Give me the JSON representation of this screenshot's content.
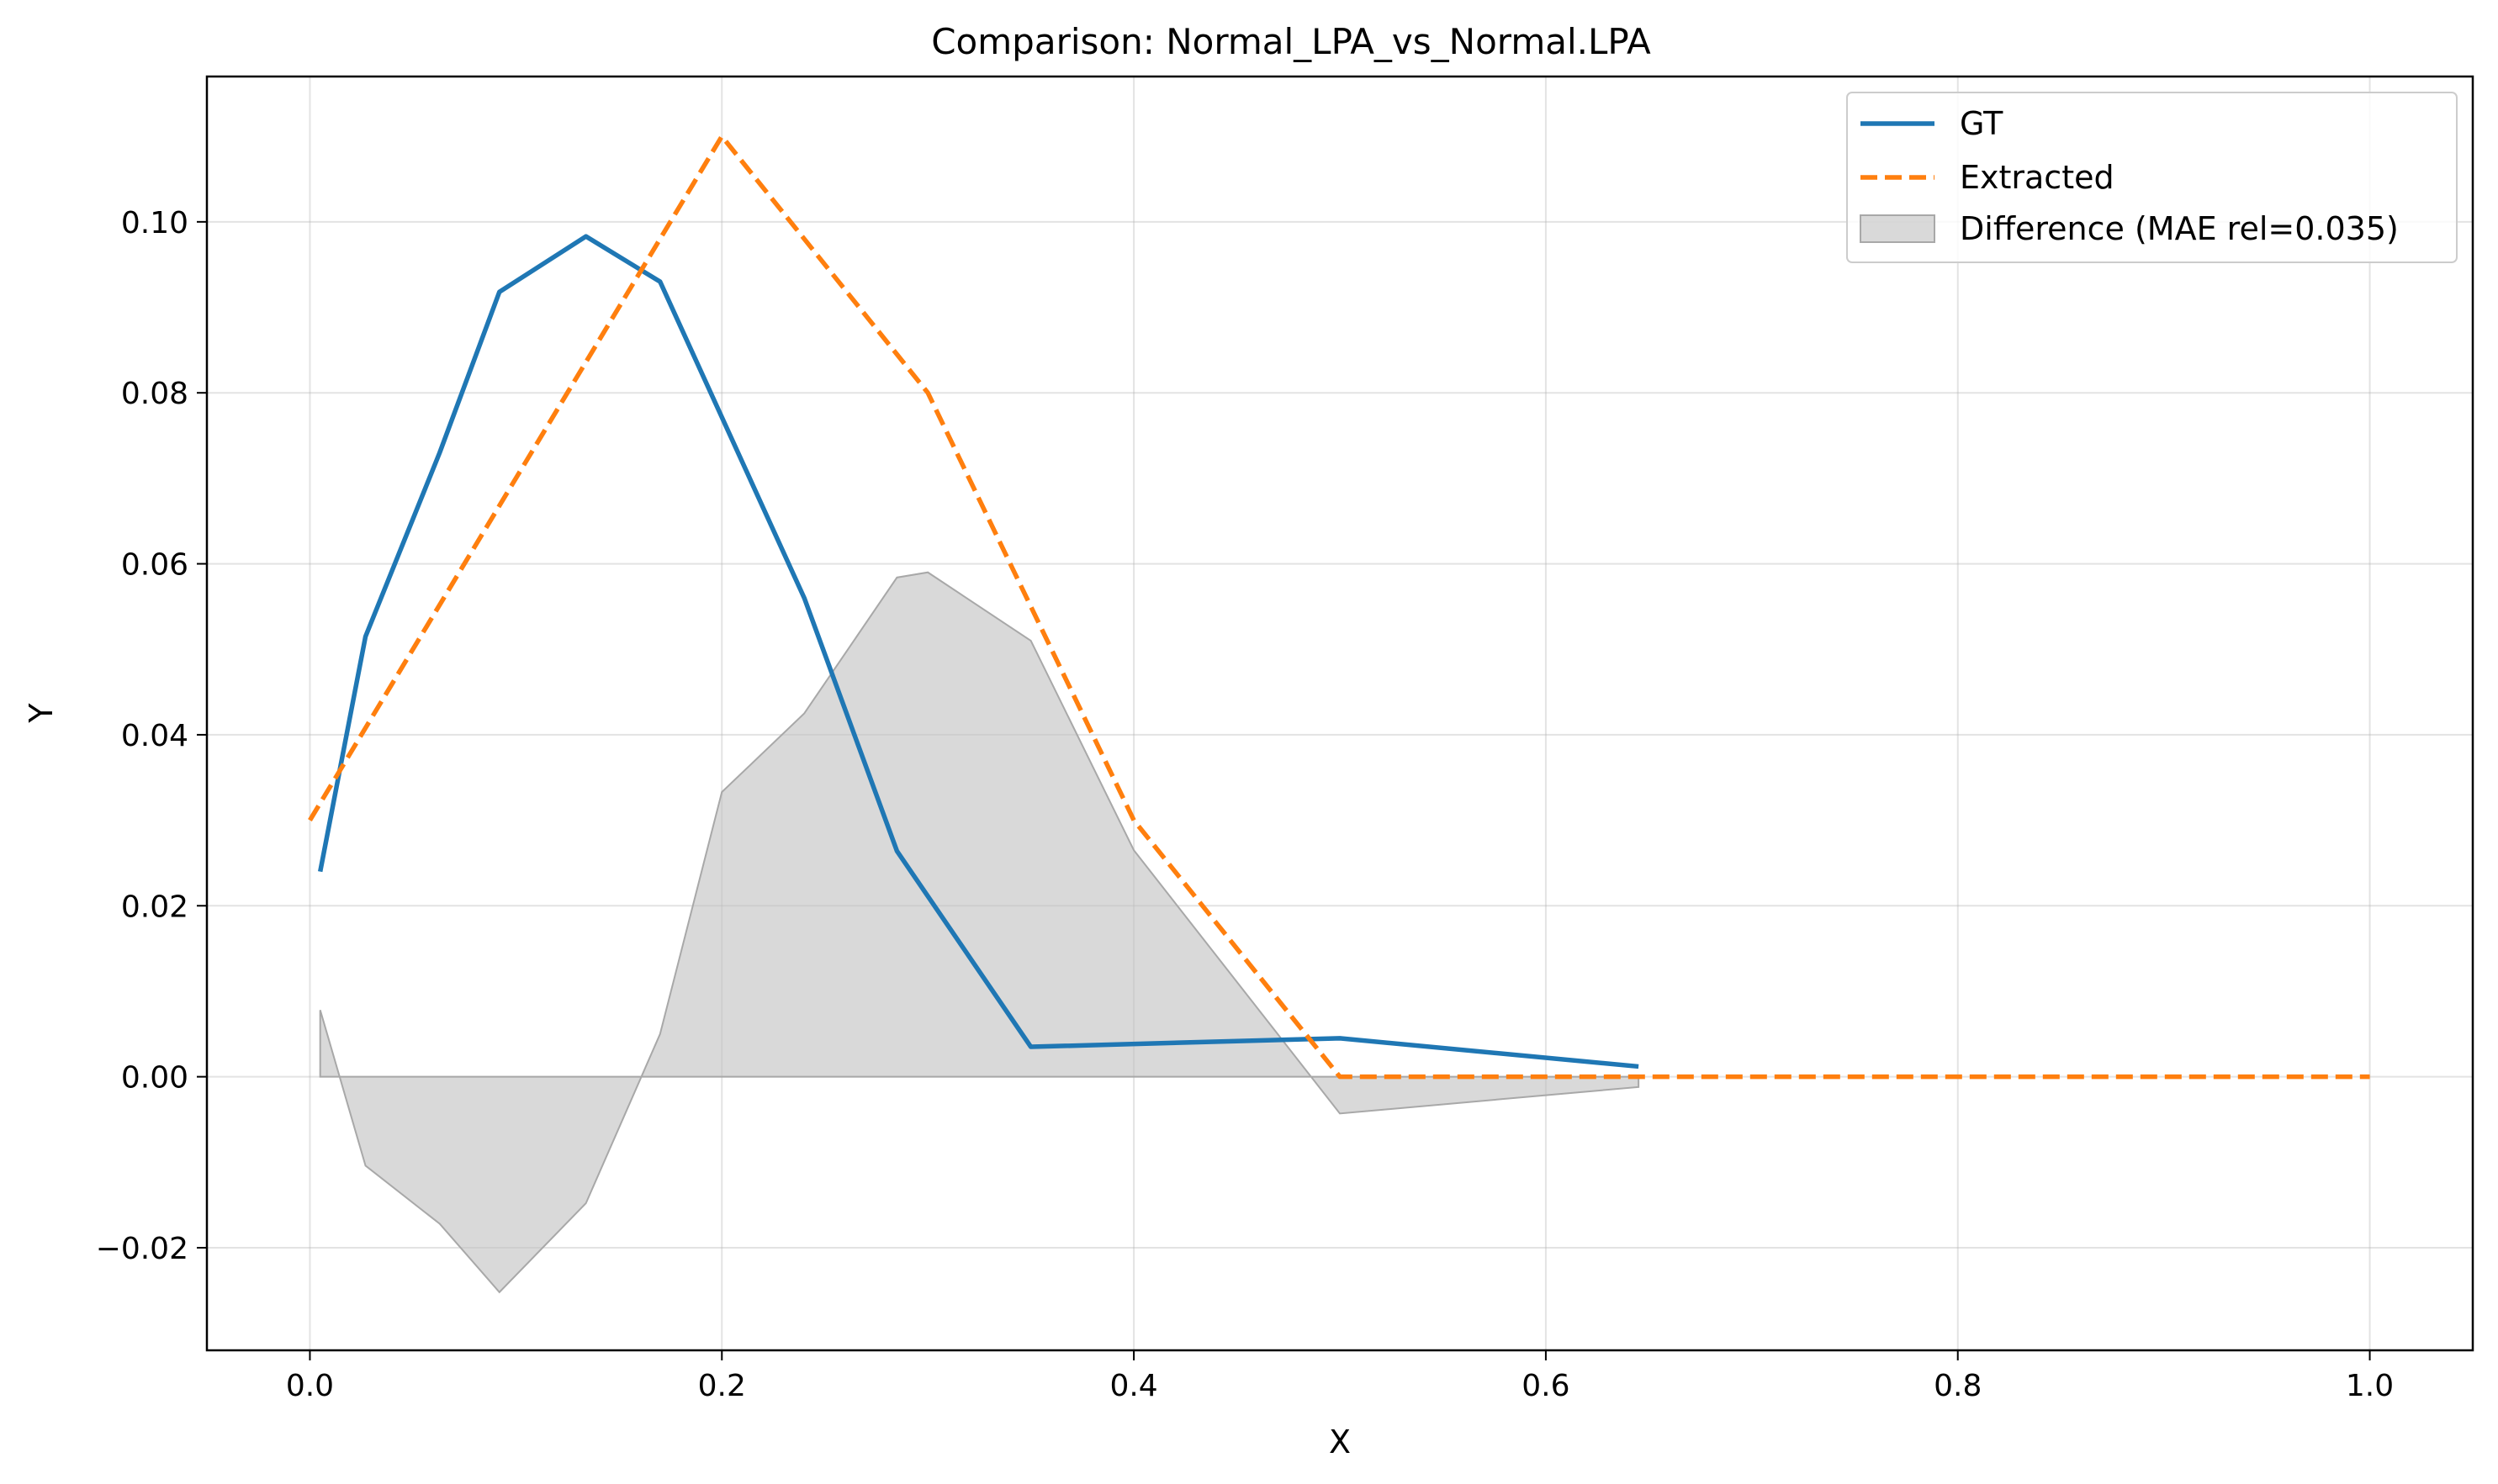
{
  "chart_data": {
    "type": "line",
    "title": "Comparison: Normal_LPA_vs_Normal.LPA",
    "xlabel": "X",
    "ylabel": "Y",
    "xlim": [
      -0.05,
      1.05
    ],
    "ylim": [
      -0.032,
      0.117
    ],
    "xticks": [
      0.0,
      0.2,
      0.4,
      0.6,
      0.8,
      1.0
    ],
    "xtick_labels": [
      "0.0",
      "0.2",
      "0.4",
      "0.6",
      "0.8",
      "1.0"
    ],
    "yticks": [
      -0.02,
      0.0,
      0.02,
      0.04,
      0.06,
      0.08,
      0.1
    ],
    "ytick_labels": [
      "−0.02",
      "0.00",
      "0.02",
      "0.04",
      "0.06",
      "0.08",
      "0.10"
    ],
    "grid": true,
    "legend_position": "top-right",
    "series": [
      {
        "name": "GT",
        "style": "solid",
        "color": "#1f77b4",
        "x": [
          0.005,
          0.027,
          0.063,
          0.092,
          0.134,
          0.17,
          0.24,
          0.285,
          0.35,
          0.5,
          0.645
        ],
        "y": [
          0.024,
          0.0515,
          0.073,
          0.0918,
          0.0983,
          0.093,
          0.056,
          0.0264,
          0.0035,
          0.0045,
          0.0012
        ]
      },
      {
        "name": "Extracted",
        "style": "dashed",
        "color": "#ff7f0e",
        "x": [
          0.0,
          0.2,
          0.3,
          0.4,
          0.5,
          1.0
        ],
        "y": [
          0.03,
          0.11,
          0.08,
          0.03,
          0.0,
          0.0
        ]
      }
    ],
    "difference": {
      "name": "Difference (MAE rel=0.035)",
      "color": "#bfbfbf",
      "x": [
        0.005,
        0.027,
        0.063,
        0.092,
        0.134,
        0.17,
        0.2,
        0.24,
        0.285,
        0.3,
        0.35,
        0.4,
        0.5,
        0.645
      ],
      "y": [
        0.0078,
        -0.0104,
        -0.0172,
        -0.0252,
        -0.0148,
        0.005,
        0.0333,
        0.0425,
        0.0584,
        0.059,
        0.051,
        0.0265,
        -0.0043,
        -0.0012
      ]
    }
  }
}
